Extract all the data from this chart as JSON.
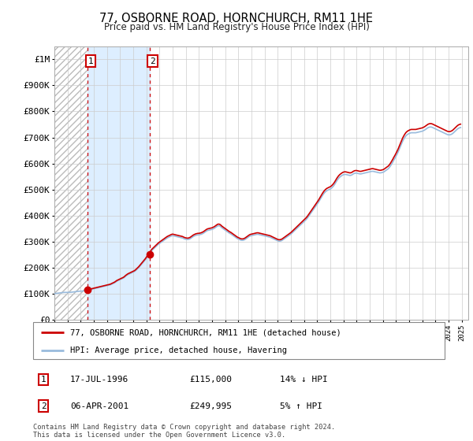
{
  "title": "77, OSBORNE ROAD, HORNCHURCH, RM11 1HE",
  "subtitle": "Price paid vs. HM Land Registry's House Price Index (HPI)",
  "ylabel_ticks": [
    "£0",
    "£100K",
    "£200K",
    "£300K",
    "£400K",
    "£500K",
    "£600K",
    "£700K",
    "£800K",
    "£900K",
    "£1M"
  ],
  "ytick_values": [
    0,
    100000,
    200000,
    300000,
    400000,
    500000,
    600000,
    700000,
    800000,
    900000,
    1000000
  ],
  "ylim": [
    0,
    1050000
  ],
  "xlim_start": 1994.0,
  "xlim_end": 2025.5,
  "sale_dates": [
    1996.54,
    2001.27
  ],
  "sale_prices": [
    115000,
    249995
  ],
  "sale_labels": [
    "1",
    "2"
  ],
  "sale_info": [
    {
      "label": "1",
      "date": "17-JUL-1996",
      "price": "£115,000",
      "hpi": "14% ↓ HPI"
    },
    {
      "label": "2",
      "date": "06-APR-2001",
      "price": "£249,995",
      "hpi": "5% ↑ HPI"
    }
  ],
  "hpi_color": "#99bbdd",
  "price_color": "#cc0000",
  "dashed_color": "#cc0000",
  "sale_region_color": "#ddeeff",
  "grid_color": "#cccccc",
  "legend1": "77, OSBORNE ROAD, HORNCHURCH, RM11 1HE (detached house)",
  "legend2": "HPI: Average price, detached house, Havering",
  "footnote": "Contains HM Land Registry data © Crown copyright and database right 2024.\nThis data is licensed under the Open Government Licence v3.0.",
  "hpi_monthly": {
    "start_year": 1994,
    "start_month": 1,
    "values": [
      100000,
      101000,
      101500,
      102000,
      102500,
      103000,
      103500,
      104000,
      104500,
      105000,
      105000,
      105000,
      105000,
      105000,
      105000,
      105500,
      106000,
      106500,
      107000,
      107500,
      108000,
      108500,
      109000,
      109500,
      110000,
      110000,
      110500,
      111000,
      111500,
      112000,
      113000,
      114000,
      115000,
      116000,
      117000,
      118000,
      119000,
      120000,
      121000,
      122000,
      123000,
      124000,
      125000,
      126000,
      127000,
      128000,
      129000,
      130000,
      131000,
      132000,
      133000,
      134000,
      136000,
      138000,
      140000,
      142000,
      145000,
      148000,
      150000,
      152000,
      154000,
      156000,
      158000,
      160000,
      163000,
      167000,
      170000,
      173000,
      175000,
      177000,
      179000,
      181000,
      183000,
      185000,
      188000,
      192000,
      196000,
      200000,
      205000,
      210000,
      215000,
      220000,
      225000,
      230000,
      236000,
      242000,
      248000,
      254000,
      260000,
      266000,
      270000,
      274000,
      278000,
      282000,
      286000,
      290000,
      293000,
      296000,
      299000,
      302000,
      305000,
      308000,
      311000,
      314000,
      316000,
      318000,
      320000,
      322000,
      323000,
      322000,
      321000,
      320000,
      319000,
      318000,
      317000,
      316000,
      315000,
      314000,
      312000,
      310000,
      309000,
      308000,
      308000,
      309000,
      311000,
      314000,
      317000,
      320000,
      322000,
      324000,
      325000,
      326000,
      326000,
      327000,
      328000,
      330000,
      332000,
      335000,
      338000,
      341000,
      343000,
      344000,
      345000,
      346000,
      347000,
      349000,
      351000,
      354000,
      357000,
      360000,
      361000,
      360000,
      357000,
      353000,
      350000,
      347000,
      344000,
      341000,
      338000,
      335000,
      332000,
      330000,
      327000,
      324000,
      321000,
      318000,
      315000,
      312000,
      310000,
      308000,
      306000,
      305000,
      305000,
      306000,
      308000,
      311000,
      314000,
      317000,
      320000,
      322000,
      323000,
      324000,
      325000,
      326000,
      327000,
      328000,
      328000,
      327000,
      326000,
      325000,
      324000,
      323000,
      322000,
      321000,
      320000,
      319000,
      318000,
      317000,
      315000,
      313000,
      311000,
      309000,
      307000,
      305000,
      303000,
      302000,
      302000,
      303000,
      305000,
      308000,
      311000,
      314000,
      317000,
      320000,
      323000,
      326000,
      329000,
      333000,
      337000,
      341000,
      345000,
      349000,
      353000,
      357000,
      361000,
      365000,
      369000,
      373000,
      377000,
      381000,
      385000,
      390000,
      396000,
      402000,
      408000,
      414000,
      420000,
      426000,
      432000,
      438000,
      444000,
      450000,
      457000,
      464000,
      471000,
      478000,
      484000,
      489000,
      493000,
      496000,
      498000,
      500000,
      502000,
      505000,
      509000,
      514000,
      520000,
      527000,
      534000,
      540000,
      545000,
      549000,
      552000,
      555000,
      557000,
      558000,
      558000,
      557000,
      556000,
      555000,
      554000,
      555000,
      557000,
      560000,
      562000,
      563000,
      563000,
      562000,
      561000,
      560000,
      560000,
      561000,
      562000,
      563000,
      564000,
      565000,
      566000,
      567000,
      568000,
      569000,
      570000,
      570000,
      569000,
      568000,
      567000,
      566000,
      565000,
      564000,
      564000,
      565000,
      566000,
      568000,
      571000,
      574000,
      577000,
      580000,
      585000,
      591000,
      598000,
      605000,
      613000,
      620000,
      628000,
      636000,
      645000,
      655000,
      665000,
      675000,
      685000,
      693000,
      700000,
      706000,
      710000,
      713000,
      715000,
      717000,
      718000,
      718000,
      718000,
      718000,
      718000,
      719000,
      720000,
      721000,
      722000,
      723000,
      724000,
      726000,
      728000,
      731000,
      734000,
      737000,
      739000,
      740000,
      740000,
      739000,
      737000,
      735000,
      733000,
      731000,
      729000,
      727000,
      725000,
      723000,
      721000,
      719000,
      717000,
      715000,
      713000,
      711000,
      710000,
      710000,
      711000,
      713000,
      716000,
      720000,
      724000,
      728000,
      732000,
      735000,
      737000,
      738000
    ]
  }
}
